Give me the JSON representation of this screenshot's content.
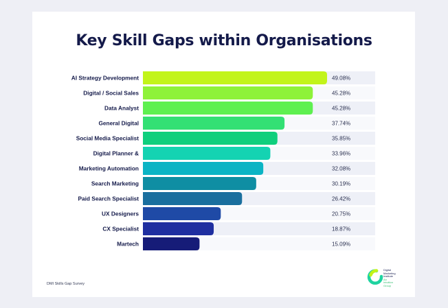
{
  "chart_data": {
    "type": "bar",
    "orientation": "horizontal",
    "title": "Key Skill Gaps within Organisations",
    "categories": [
      "AI Strategy Development",
      "Digital / Social Sales",
      "Data Analyst",
      "General Digital",
      "Social Media Specialist",
      "Digital Planner &",
      "Marketing Automation",
      "Search Marketing",
      "Paid Search Specialist",
      "UX Designers",
      "CX Specialist",
      "Martech"
    ],
    "values": [
      49.08,
      45.28,
      45.28,
      37.74,
      35.85,
      33.96,
      32.08,
      30.19,
      26.42,
      20.75,
      18.87,
      15.09
    ],
    "value_labels": [
      "49.08%",
      "45.28%",
      "45.28%",
      "37.74%",
      "35.85%",
      "33.96%",
      "32.08%",
      "30.19%",
      "26.42%",
      "20.75%",
      "18.87%",
      "15.09%"
    ],
    "colors": [
      "#c2f41a",
      "#8ef239",
      "#5ef050",
      "#33e074",
      "#0fcf7d",
      "#14d3b2",
      "#0bb4c4",
      "#0f8ea3",
      "#1a6f9e",
      "#1f4aa6",
      "#1f2fa0",
      "#161c78"
    ],
    "xlim": [
      0,
      49.08
    ],
    "xlabel": "",
    "ylabel": "",
    "legend": "none",
    "grid": false
  },
  "source": "DMI Skills Gap Survey",
  "logo": {
    "name": "Digital Marketing Institute",
    "lines": [
      "Digital",
      "Marketing",
      "Institute"
    ],
    "sub_lines": [
      "An",
      "Intuition",
      "Group"
    ],
    "icon": "dmi-ring-logo-icon"
  }
}
